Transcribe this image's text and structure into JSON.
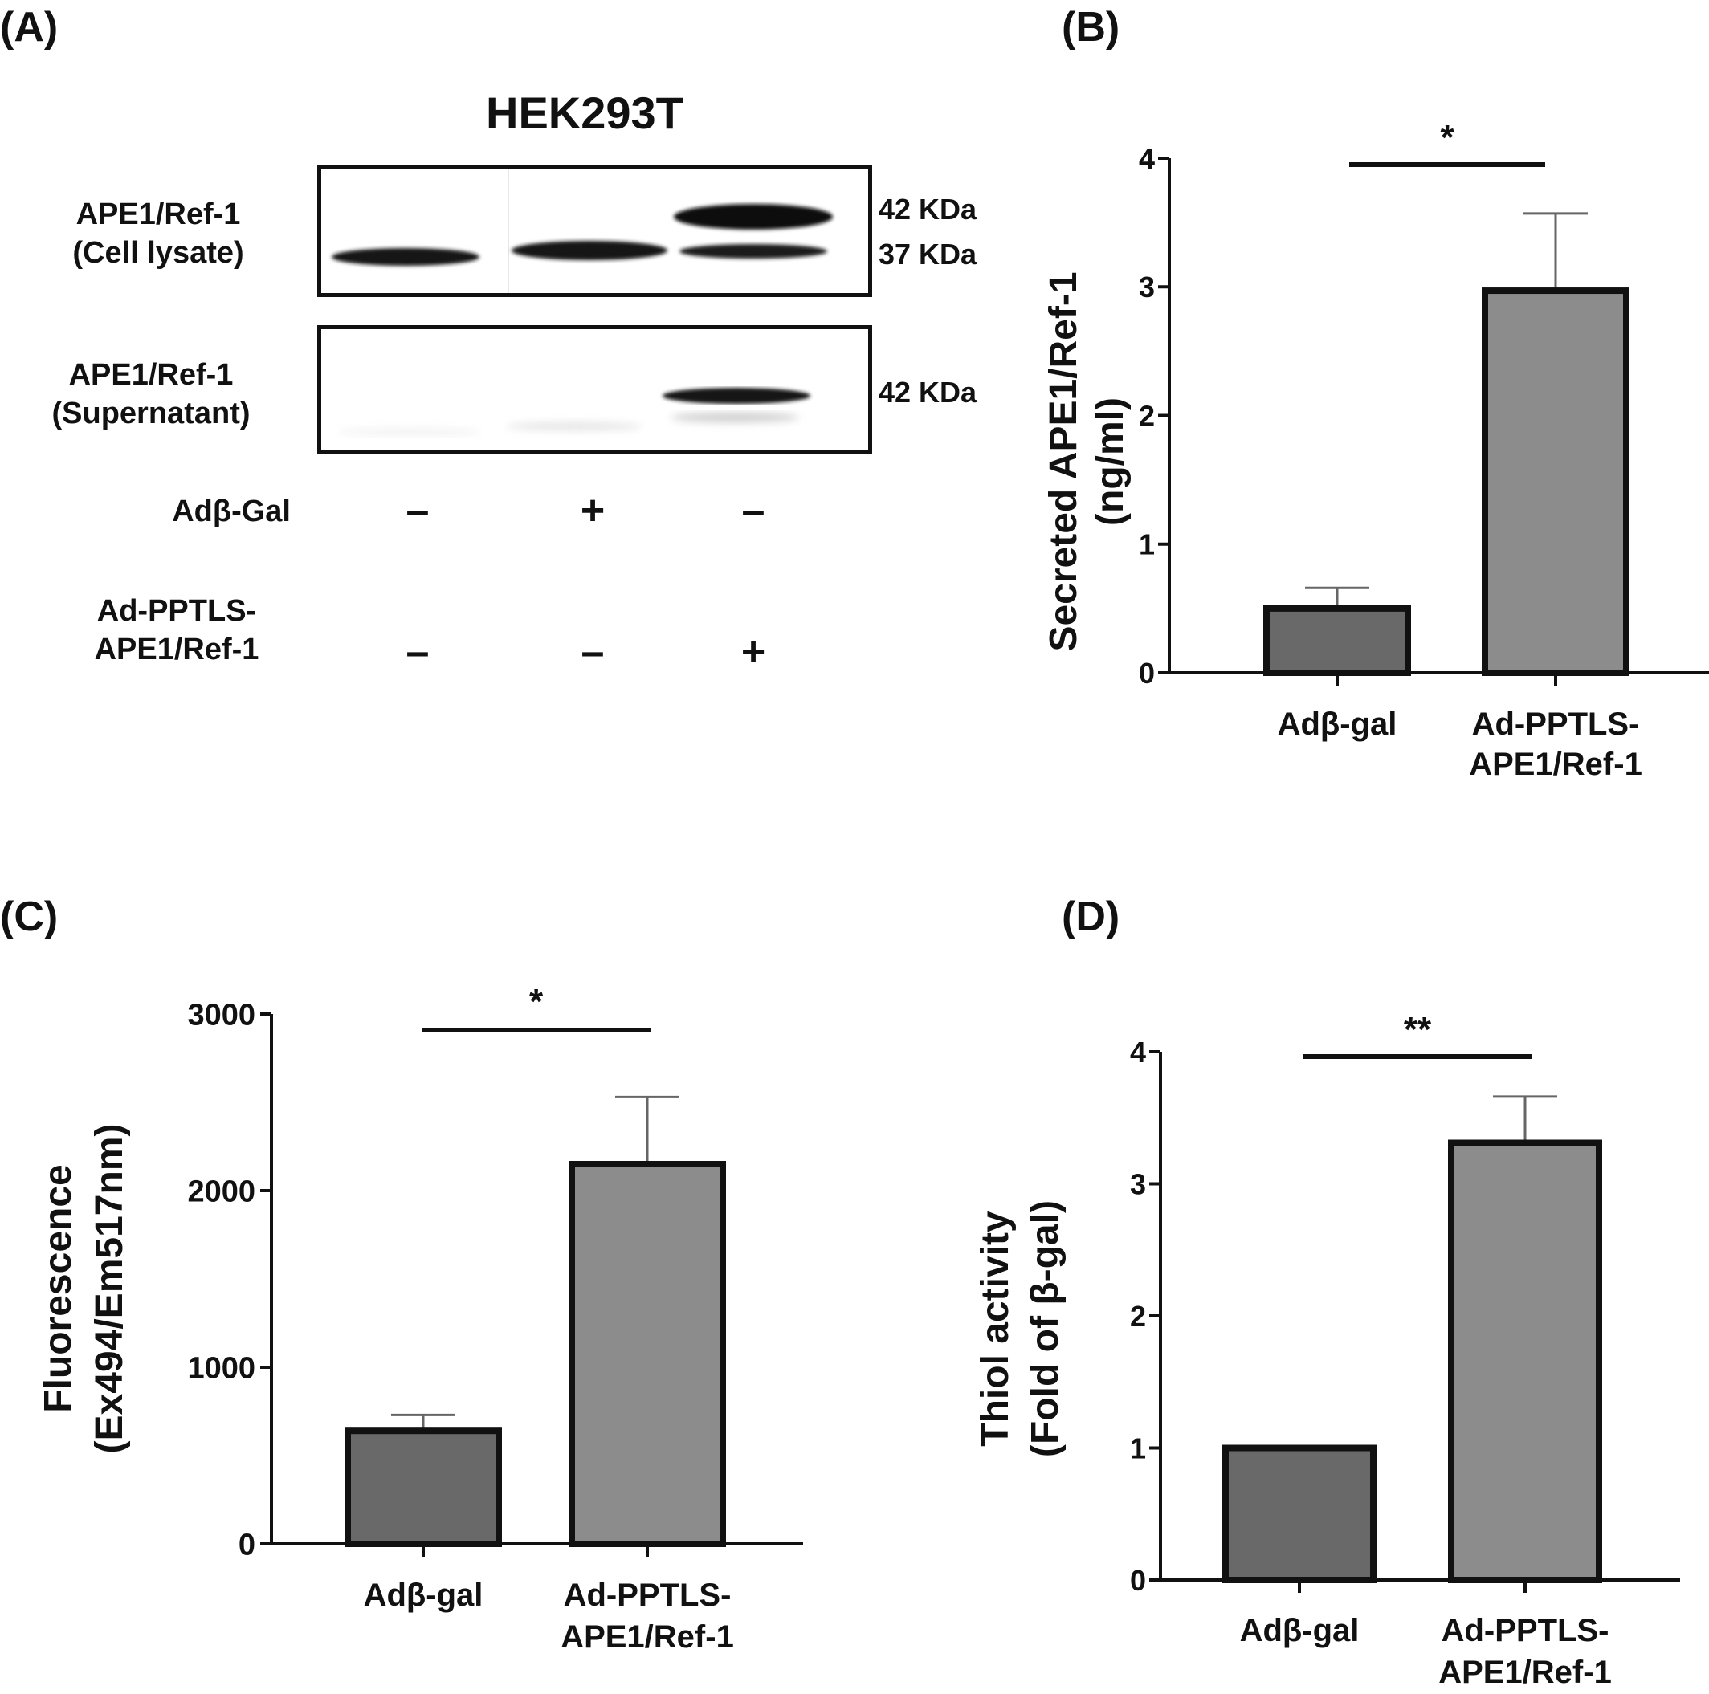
{
  "panel_a": {
    "letter": "(A)",
    "cell_line": "HEK293T",
    "blot1_label": [
      "APE1/Ref-1",
      "(Cell lysate)"
    ],
    "blot2_label": [
      "APE1/Ref-1",
      "(Supernatant)"
    ],
    "blot1_sizes": [
      "42 KDa",
      "37 KDa"
    ],
    "blot2_sizes": [
      "42 KDa"
    ],
    "row1_label": "Adβ-Gal",
    "row1_signs": [
      "–",
      "+",
      "–"
    ],
    "row2_label": [
      "Ad-PPTLS-",
      "APE1/Ref-1"
    ],
    "row2_signs": [
      "–",
      "–",
      "+"
    ]
  },
  "chart_data": [
    {
      "panel": "(B)",
      "type": "bar",
      "categories": [
        "Adβ-gal",
        "Ad-PPTLS-APE1/Ref-1"
      ],
      "category_lines": [
        [
          "Adβ-gal"
        ],
        [
          "Ad-PPTLS-",
          "APE1/Ref-1"
        ]
      ],
      "values": [
        0.5,
        2.97
      ],
      "errors": [
        0.16,
        0.6
      ],
      "ylabel": [
        "Secreted APE1/Ref-1",
        "(ng/ml)"
      ],
      "ylim": [
        0,
        4
      ],
      "yticks": [
        0,
        1,
        2,
        3,
        4
      ],
      "significance": "*",
      "bar_colors": [
        "#696969",
        "#8c8c8c"
      ]
    },
    {
      "panel": "(C)",
      "type": "bar",
      "categories": [
        "Adβ-gal",
        "Ad-PPTLS-APE1/Ref-1"
      ],
      "category_lines": [
        [
          "Adβ-gal"
        ],
        [
          "Ad-PPTLS-",
          "APE1/Ref-1"
        ]
      ],
      "values": [
        640,
        2150
      ],
      "errors": [
        90,
        380
      ],
      "ylabel": [
        "Fluorescence",
        "(Ex494/Em517nm)"
      ],
      "ylim": [
        0,
        3000
      ],
      "yticks": [
        0,
        1000,
        2000,
        3000
      ],
      "significance": "*",
      "bar_colors": [
        "#696969",
        "#8c8c8c"
      ]
    },
    {
      "panel": "(D)",
      "type": "bar",
      "categories": [
        "Adβ-gal",
        "Ad-PPTLS-APE1/Ref-1"
      ],
      "category_lines": [
        [
          "Adβ-gal"
        ],
        [
          "Ad-PPTLS-",
          "APE1/Ref-1"
        ]
      ],
      "values": [
        1.0,
        3.31
      ],
      "errors": [
        0,
        0.35
      ],
      "ylabel": [
        "Thiol activity",
        "(Fold of β-gal)"
      ],
      "ylim": [
        0,
        4
      ],
      "yticks": [
        0,
        1,
        2,
        3,
        4
      ],
      "significance": "**",
      "bar_colors": [
        "#696969",
        "#8c8c8c"
      ]
    }
  ]
}
